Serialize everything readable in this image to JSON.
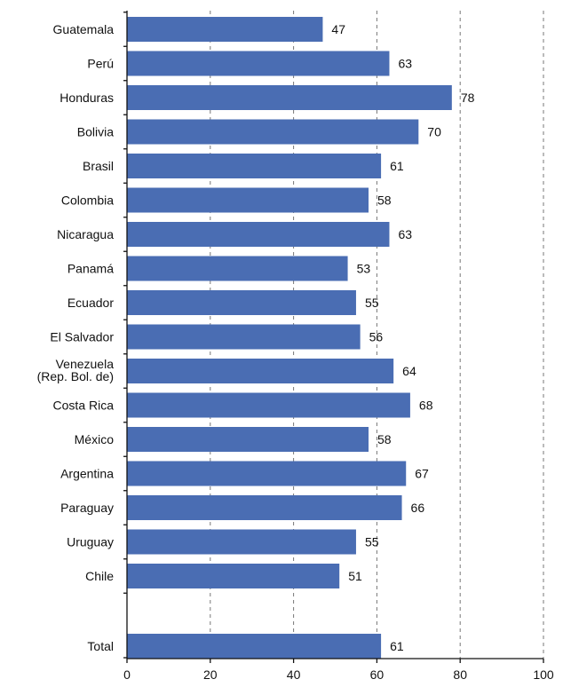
{
  "chart_data": {
    "type": "bar",
    "orientation": "horizontal",
    "categories": [
      "Guatemala",
      "Perú",
      "Honduras",
      "Bolivia",
      "Brasil",
      "Colombia",
      "Nicaragua",
      "Panamá",
      "Ecuador",
      "El Salvador",
      "Venezuela\n(Rep. Bol. de)",
      "Costa Rica",
      "México",
      "Argentina",
      "Paraguay",
      "Uruguay",
      "Chile",
      "Total"
    ],
    "values": [
      47,
      63,
      78,
      70,
      61,
      58,
      63,
      53,
      55,
      56,
      64,
      68,
      58,
      67,
      66,
      55,
      51,
      61
    ],
    "value_labels": [
      "47",
      "63",
      "78",
      "70",
      "61",
      "58",
      "63",
      "53",
      "55",
      "56",
      "64",
      "68",
      "58",
      "67",
      "66",
      "55",
      "51",
      "61"
    ],
    "xlim": [
      0,
      100
    ],
    "xticks": [
      "0",
      "20",
      "40",
      "60",
      "80",
      "100"
    ],
    "grid": "vertical dashed at 20, 40, 60, 80, 100",
    "legend": "none",
    "bar_color": "#4a6db3",
    "title": "",
    "xlabel": "",
    "ylabel": ""
  }
}
